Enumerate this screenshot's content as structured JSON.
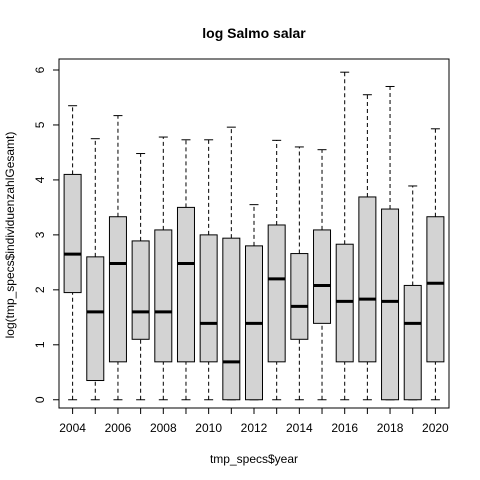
{
  "chart_data": {
    "type": "boxplot",
    "title": "log Salmo salar",
    "xlabel": "tmp_specs$year",
    "ylabel": "log(tmp_specs$individuenzahlGesamt)",
    "ylim": [
      -0.15,
      6.2
    ],
    "y_ticks": [
      0,
      1,
      2,
      3,
      4,
      5,
      6
    ],
    "x_tick_labels": [
      "2004",
      "2006",
      "2008",
      "2010",
      "2012",
      "2014",
      "2016",
      "2018",
      "2020"
    ],
    "box_fill": "#d3d3d3",
    "grid": false,
    "categories": [
      "2004",
      "2005",
      "2006",
      "2007",
      "2008",
      "2009",
      "2010",
      "2011",
      "2012",
      "2013",
      "2014",
      "2015",
      "2016",
      "2017",
      "2018",
      "2019",
      "2020"
    ],
    "boxes": [
      {
        "year": "2004",
        "min": 0,
        "q1": 1.95,
        "median": 2.65,
        "q3": 4.1,
        "max": 5.35
      },
      {
        "year": "2005",
        "min": 0,
        "q1": 0.35,
        "median": 1.6,
        "q3": 2.6,
        "max": 4.75
      },
      {
        "year": "2006",
        "min": 0,
        "q1": 0.69,
        "median": 2.48,
        "q3": 3.33,
        "max": 5.17
      },
      {
        "year": "2007",
        "min": 0,
        "q1": 1.1,
        "median": 1.6,
        "q3": 2.89,
        "max": 4.48
      },
      {
        "year": "2008",
        "min": 0,
        "q1": 0.69,
        "median": 1.6,
        "q3": 3.09,
        "max": 4.78
      },
      {
        "year": "2009",
        "min": 0,
        "q1": 0.69,
        "median": 2.48,
        "q3": 3.5,
        "max": 4.73
      },
      {
        "year": "2010",
        "min": 0,
        "q1": 0.69,
        "median": 1.39,
        "q3": 3.0,
        "max": 4.73
      },
      {
        "year": "2011",
        "min": 0,
        "q1": 0,
        "median": 0.69,
        "q3": 2.94,
        "max": 4.96
      },
      {
        "year": "2012",
        "min": 0,
        "q1": 0,
        "median": 1.39,
        "q3": 2.8,
        "max": 3.55
      },
      {
        "year": "2013",
        "min": 0,
        "q1": 0.69,
        "median": 2.2,
        "q3": 3.18,
        "max": 4.72
      },
      {
        "year": "2014",
        "min": 0,
        "q1": 1.1,
        "median": 1.7,
        "q3": 2.66,
        "max": 4.6
      },
      {
        "year": "2015",
        "min": 0,
        "q1": 1.39,
        "median": 2.08,
        "q3": 3.09,
        "max": 4.55
      },
      {
        "year": "2016",
        "min": 0,
        "q1": 0.69,
        "median": 1.79,
        "q3": 2.83,
        "max": 5.96
      },
      {
        "year": "2017",
        "min": 0,
        "q1": 0.69,
        "median": 1.83,
        "q3": 3.69,
        "max": 5.55
      },
      {
        "year": "2018",
        "min": 0,
        "q1": 0,
        "median": 1.79,
        "q3": 3.47,
        "max": 5.7
      },
      {
        "year": "2019",
        "min": 0,
        "q1": 0,
        "median": 1.39,
        "q3": 2.08,
        "max": 3.89
      },
      {
        "year": "2020",
        "min": 0,
        "q1": 0.69,
        "median": 2.12,
        "q3": 3.33,
        "max": 4.93
      }
    ]
  }
}
